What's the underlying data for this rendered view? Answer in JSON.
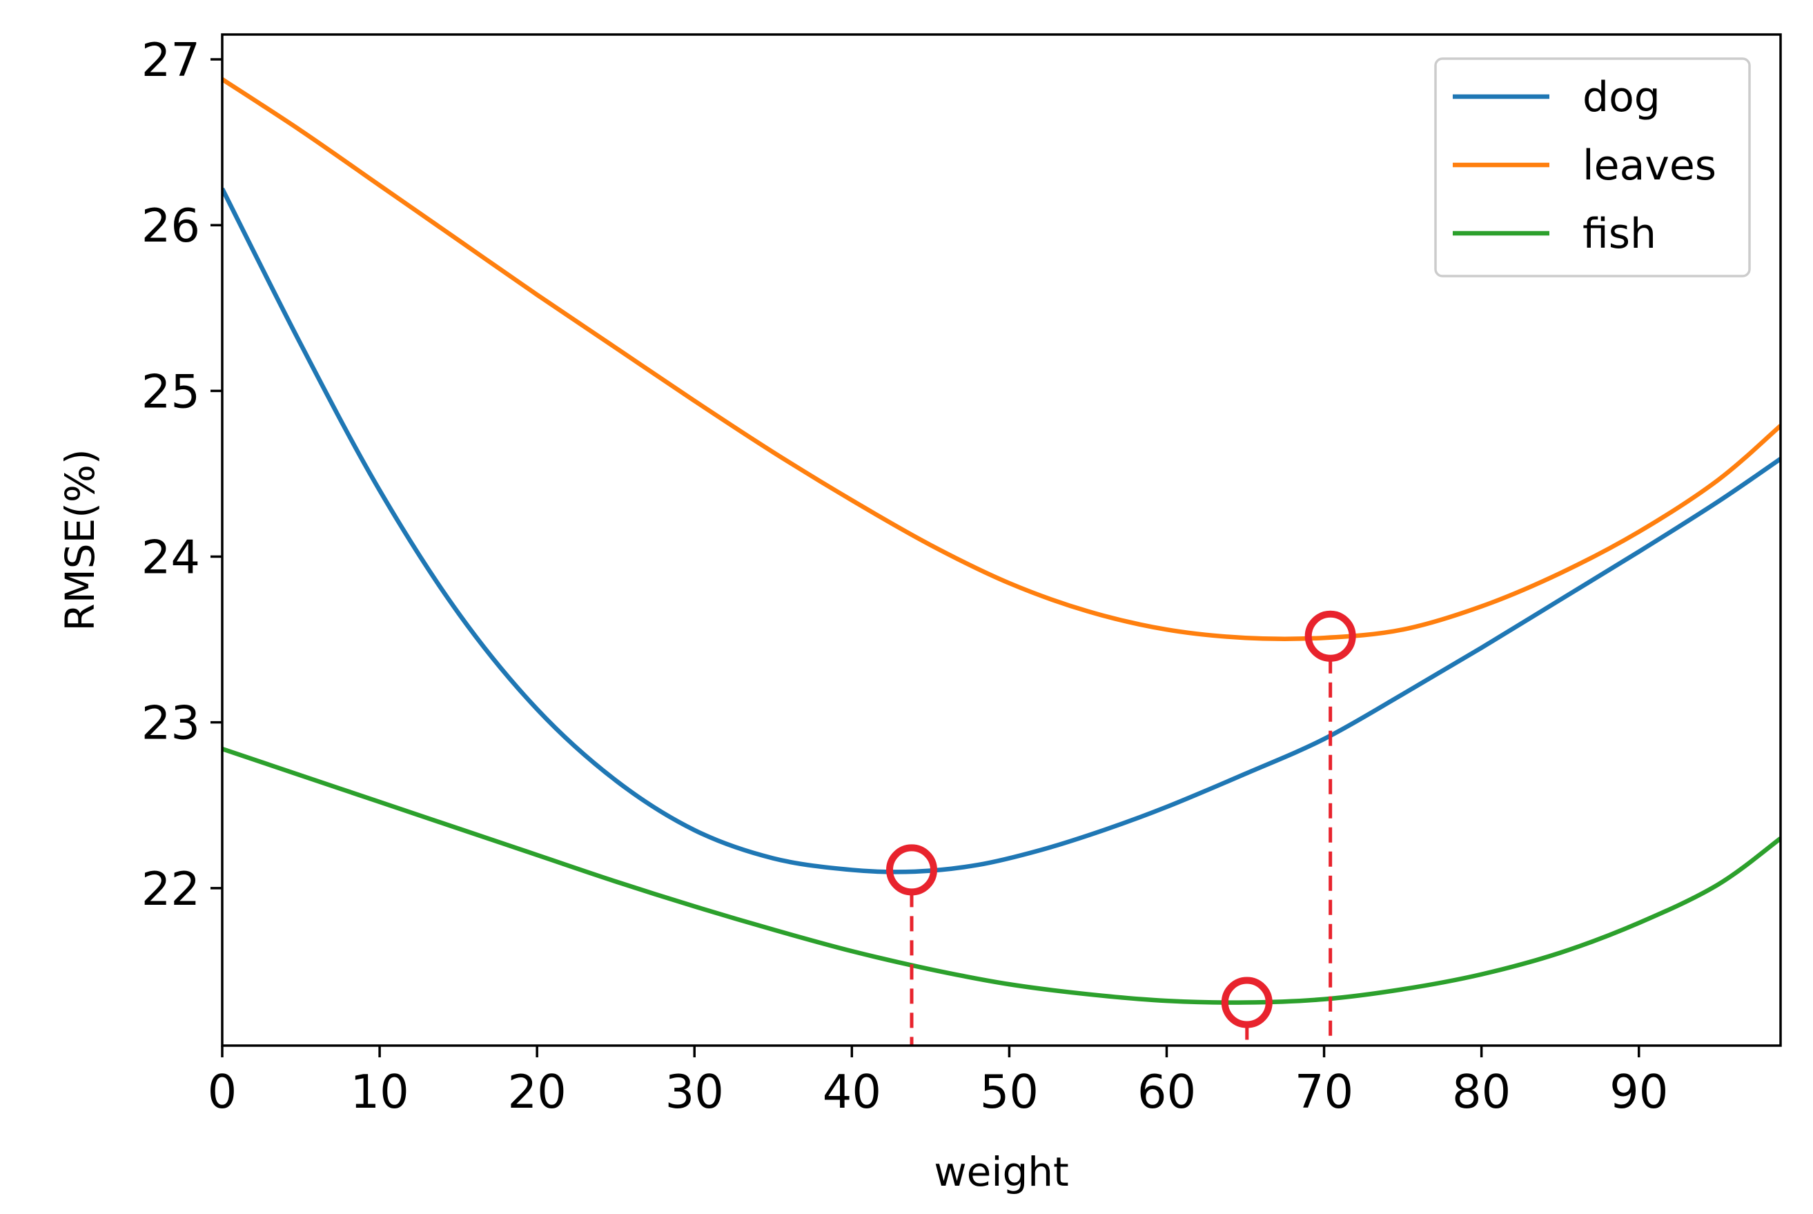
{
  "chart_data": {
    "type": "line",
    "title": "",
    "xlabel": "weight",
    "ylabel": "RMSE(%)",
    "xlim": [
      0,
      99
    ],
    "ylim": [
      21.05,
      27.15
    ],
    "xticks": [
      0,
      10,
      20,
      30,
      40,
      50,
      60,
      70,
      80,
      90
    ],
    "yticks": [
      22,
      23,
      24,
      25,
      26,
      27
    ],
    "grid": false,
    "legend_position": "top-right",
    "series": [
      {
        "name": "dog",
        "color": "#1f77b4",
        "x": [
          0,
          5,
          10,
          15,
          20,
          25,
          30,
          35,
          40,
          44,
          48,
          52,
          56,
          60,
          65,
          70,
          75,
          80,
          85,
          90,
          95,
          99
        ],
        "y": [
          26.22,
          25.28,
          24.4,
          23.66,
          23.08,
          22.65,
          22.35,
          22.18,
          22.11,
          22.1,
          22.14,
          22.23,
          22.35,
          22.49,
          22.69,
          22.9,
          23.17,
          23.45,
          23.74,
          24.03,
          24.33,
          24.59
        ]
      },
      {
        "name": "leaves",
        "color": "#ff7f0e",
        "x": [
          0,
          5,
          10,
          15,
          20,
          25,
          30,
          35,
          40,
          45,
          50,
          55,
          60,
          65,
          70,
          75,
          80,
          85,
          90,
          95,
          99
        ],
        "y": [
          26.88,
          26.57,
          26.24,
          25.91,
          25.58,
          25.26,
          24.94,
          24.63,
          24.34,
          24.07,
          23.84,
          23.67,
          23.56,
          23.51,
          23.51,
          23.56,
          23.7,
          23.9,
          24.15,
          24.46,
          24.79
        ]
      },
      {
        "name": "fish",
        "color": "#2ca02c",
        "x": [
          0,
          5,
          10,
          15,
          20,
          25,
          30,
          35,
          40,
          45,
          50,
          55,
          60,
          65,
          70,
          75,
          80,
          85,
          90,
          95,
          99
        ],
        "y": [
          22.84,
          22.68,
          22.52,
          22.36,
          22.2,
          22.04,
          21.89,
          21.75,
          21.62,
          21.51,
          21.42,
          21.36,
          21.32,
          21.31,
          21.33,
          21.39,
          21.48,
          21.61,
          21.79,
          22.02,
          22.3
        ]
      }
    ],
    "annotations": [
      {
        "series": "dog",
        "x": 43.8,
        "y": 22.11,
        "marker": "open-circle",
        "color": "#e8232d",
        "dropline": "dashed"
      },
      {
        "series": "leaves",
        "x": 70.4,
        "y": 23.52,
        "marker": "open-circle",
        "color": "#e8232d",
        "dropline": "dashed"
      },
      {
        "series": "fish",
        "x": 65.1,
        "y": 21.31,
        "marker": "open-circle",
        "color": "#e8232d",
        "dropline": "dashed"
      }
    ]
  }
}
